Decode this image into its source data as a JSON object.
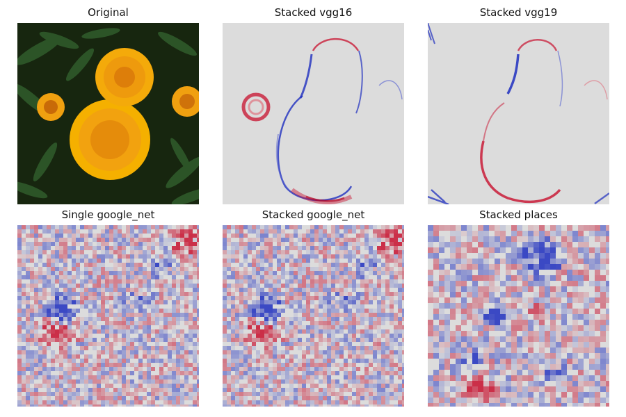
{
  "figure": {
    "panels": [
      {
        "key": "original",
        "title": "Original",
        "kind": "photo"
      },
      {
        "key": "vgg16",
        "title": "Stacked vgg16",
        "kind": "saliency-smooth"
      },
      {
        "key": "vgg19",
        "title": "Stacked vgg19",
        "kind": "saliency-smooth"
      },
      {
        "key": "single_google",
        "title": "Single google_net",
        "kind": "saliency-grid"
      },
      {
        "key": "stacked_google",
        "title": "Stacked google_net",
        "kind": "saliency-grid"
      },
      {
        "key": "places",
        "title": "Stacked places",
        "kind": "saliency-blocky"
      }
    ]
  },
  "colors": {
    "saliency_neutral": "#dcdcdc",
    "saliency_positive": "#c8102e",
    "saliency_negative": "#1f2fbf",
    "flower_orange": "#f2a20f",
    "flower_center": "#d9780a",
    "leaf_dark": "#1c2e14",
    "leaf_green": "#2f5a2a"
  }
}
